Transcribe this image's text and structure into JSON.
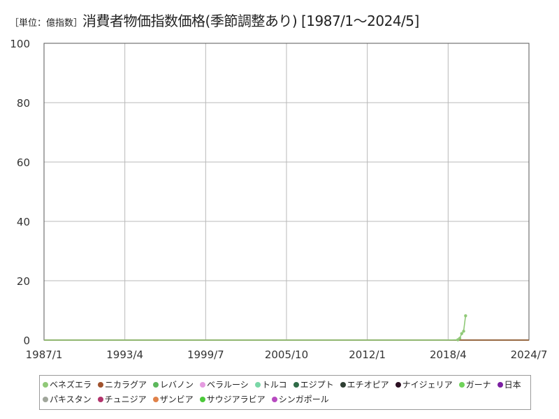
{
  "header": {
    "unit": "［単位：億指数］",
    "title": "消費者物価指数価格(季節調整あり) [1987/1〜2024/5]"
  },
  "chart_data": {
    "type": "line",
    "title": "消費者物価指数価格(季節調整あり) [1987/1〜2024/5]",
    "unit": "［単位：億指数］",
    "xlabel": "",
    "ylabel": "",
    "x_ticks": [
      "1987/1",
      "1993/4",
      "1999/7",
      "2005/10",
      "2012/1",
      "2018/4",
      "2024/7"
    ],
    "x_range": [
      1987.0,
      2024.5
    ],
    "ylim": [
      0,
      100
    ],
    "y_ticks": [
      0,
      20,
      40,
      60,
      80,
      100
    ],
    "grid": true,
    "legend_position": "bottom",
    "series": [
      {
        "name": "ベネズエラ",
        "color": "#90c978",
        "points": [
          [
            1987.0,
            0
          ],
          [
            2018.0,
            0
          ],
          [
            2019.0,
            0.1
          ],
          [
            2019.15,
            0.6
          ],
          [
            2019.3,
            2.2
          ],
          [
            2019.45,
            3.0
          ],
          [
            2019.6,
            8.2
          ]
        ]
      },
      {
        "name": "ニカラグア",
        "color": "#a0522d",
        "points": [
          [
            1987.0,
            0
          ],
          [
            2024.5,
            0
          ]
        ]
      },
      {
        "name": "レバノン",
        "color": "#5cb85c",
        "points": [
          [
            1987.0,
            0
          ],
          [
            2024.5,
            0
          ]
        ]
      },
      {
        "name": "ベラルーシ",
        "color": "#e59be0",
        "points": [
          [
            1987.0,
            0
          ],
          [
            2024.5,
            0
          ]
        ]
      },
      {
        "name": "トルコ",
        "color": "#7ad7a7",
        "points": [
          [
            1987.0,
            0
          ],
          [
            2024.5,
            0
          ]
        ]
      },
      {
        "name": "エジプト",
        "color": "#2e6b47",
        "points": [
          [
            1987.0,
            0
          ],
          [
            2024.5,
            0
          ]
        ]
      },
      {
        "name": "エチオピア",
        "color": "#2f3f33",
        "points": [
          [
            1987.0,
            0
          ],
          [
            2024.5,
            0
          ]
        ]
      },
      {
        "name": "ナイジェリア",
        "color": "#2b0f22",
        "points": [
          [
            1987.0,
            0
          ],
          [
            2024.5,
            0
          ]
        ]
      },
      {
        "name": "ガーナ",
        "color": "#6fd35a",
        "points": [
          [
            1987.0,
            0
          ],
          [
            2024.5,
            0
          ]
        ]
      },
      {
        "name": "日本",
        "color": "#7b1fa2",
        "points": [
          [
            1987.0,
            0
          ],
          [
            2024.5,
            0
          ]
        ]
      },
      {
        "name": "パキスタン",
        "color": "#a0a69b",
        "points": [
          [
            1987.0,
            0
          ],
          [
            2024.5,
            0
          ]
        ]
      },
      {
        "name": "チュニジア",
        "color": "#b2346c",
        "points": [
          [
            1987.0,
            0
          ],
          [
            2024.5,
            0
          ]
        ]
      },
      {
        "name": "ザンビア",
        "color": "#e0824a",
        "points": [
          [
            1987.0,
            0
          ],
          [
            2024.5,
            0
          ]
        ]
      },
      {
        "name": "サウジアラビア",
        "color": "#4cc93a",
        "points": [
          [
            1987.0,
            0
          ],
          [
            2024.5,
            0
          ]
        ]
      },
      {
        "name": "シンガポール",
        "color": "#b74bc0",
        "points": [
          [
            1987.0,
            0
          ],
          [
            2024.5,
            0
          ]
        ]
      }
    ]
  }
}
